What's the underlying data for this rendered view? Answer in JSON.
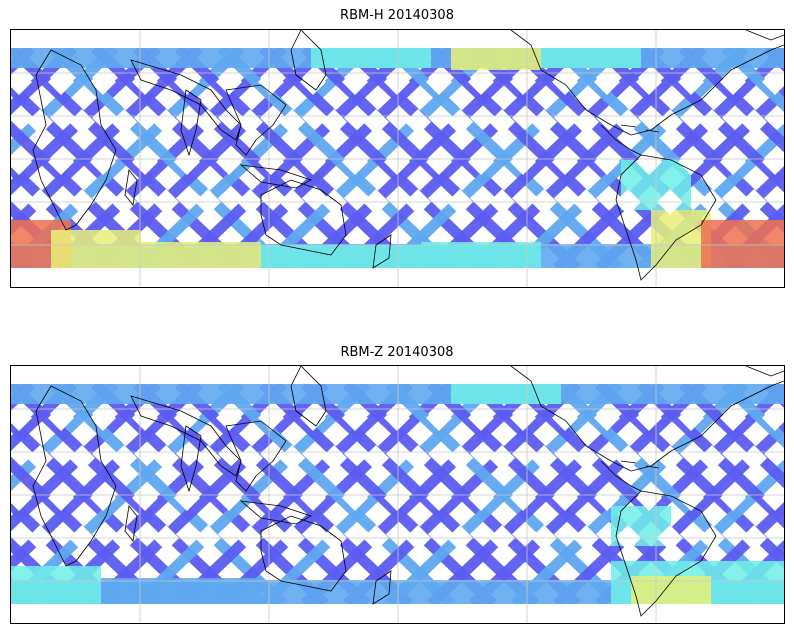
{
  "panels": [
    {
      "title": "RBM-H 20140308",
      "colors": {
        "low": "#5b5cf0",
        "mid_low": "#5fa8f0",
        "mid": "#6ff0e8",
        "mid_high": "#e8f078",
        "high": "#f07050"
      }
    },
    {
      "title": "RBM-Z 20140308",
      "colors": {
        "low": "#5b5cf0",
        "mid_low": "#5fa8f0",
        "mid": "#6ff0e8",
        "mid_high": "#e8f078",
        "high": "#f07050"
      }
    }
  ],
  "map": {
    "coastline_color": "#000000",
    "grid_color": "#c8c8c8",
    "grid": true
  }
}
